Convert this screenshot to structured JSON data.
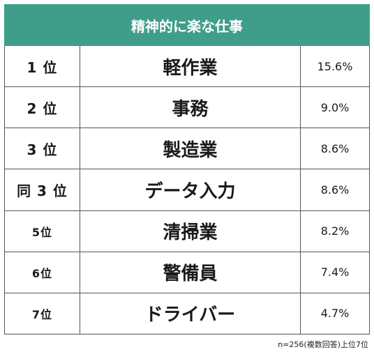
{
  "chart_data": {
    "type": "table",
    "title": "精神的に楽な仕事",
    "rows": [
      {
        "rank": "1 位",
        "job": "軽作業",
        "value": "15.6%"
      },
      {
        "rank": "2 位",
        "job": "事務",
        "value": "9.0%"
      },
      {
        "rank": "3 位",
        "job": "製造業",
        "value": "8.6%"
      },
      {
        "rank": "同 3 位",
        "job": "データ入力",
        "value": "8.6%"
      },
      {
        "rank": "5位",
        "job": "清掃業",
        "value": "8.2%"
      },
      {
        "rank": "6位",
        "job": "警備員",
        "value": "7.4%"
      },
      {
        "rank": "7位",
        "job": "ドライバー",
        "value": "4.7%"
      }
    ],
    "note": "n=256(複数回答)上位7位"
  },
  "colors": {
    "header_bg": "#3f9e89",
    "header_text": "#ffffff",
    "border": "#555555"
  }
}
